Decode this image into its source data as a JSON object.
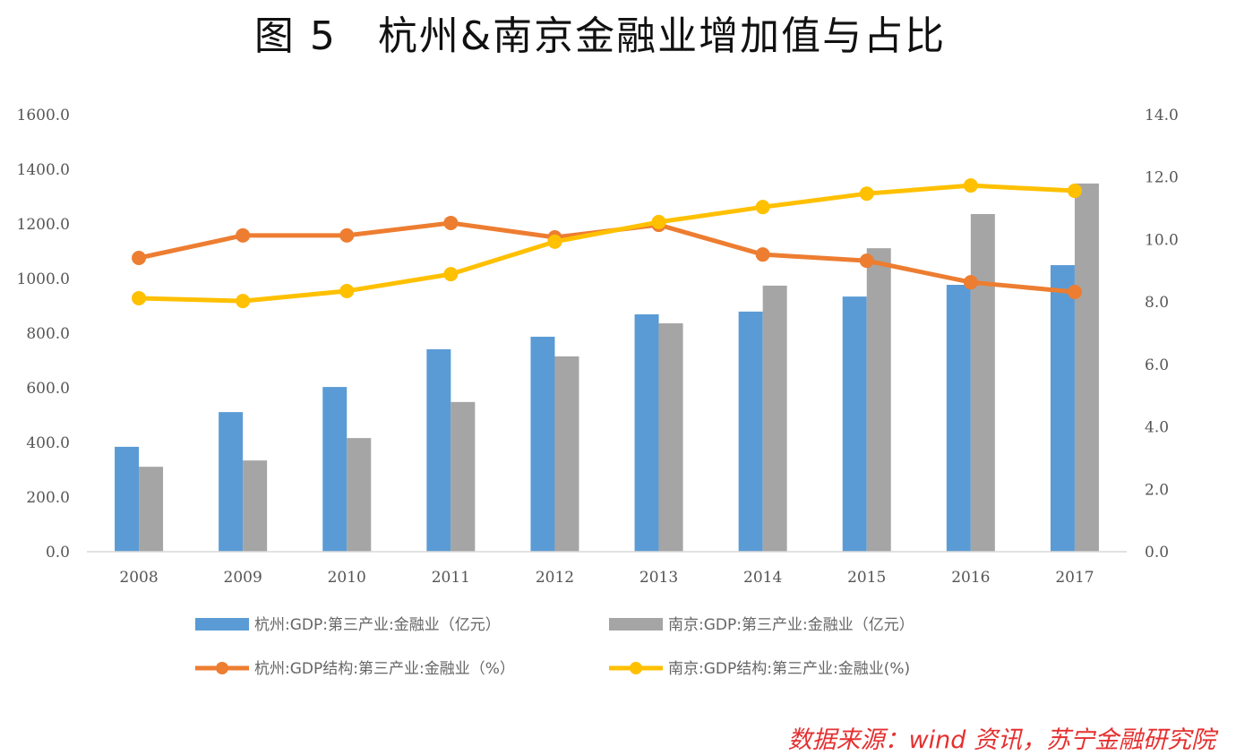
{
  "title": "图 5　杭州&南京金融业增加值与占比",
  "source": "数据来源：wind 资讯，苏宁金融研究院",
  "chart_data": {
    "type": "bar+line",
    "title": "图 5　杭州&南京金融业增加值与占比",
    "categories": [
      "2008",
      "2009",
      "2010",
      "2011",
      "2012",
      "2013",
      "2014",
      "2015",
      "2016",
      "2017"
    ],
    "y_left": {
      "range": [
        0,
        1600
      ],
      "ticks": [
        "0.0",
        "200.0",
        "400.0",
        "600.0",
        "800.0",
        "1000.0",
        "1200.0",
        "1400.0",
        "1600.0"
      ]
    },
    "y_right": {
      "range": [
        0,
        14
      ],
      "ticks": [
        "0.0",
        "2.0",
        "4.0",
        "6.0",
        "8.0",
        "10.0",
        "12.0",
        "14.0"
      ]
    },
    "grid": false,
    "legend_position": "bottom",
    "series": [
      {
        "name": "杭州:GDP:第三产业:金融业（亿元）",
        "type": "bar",
        "axis": "left",
        "color": "#5b9bd5",
        "values": [
          384,
          511,
          603,
          741,
          787,
          869,
          879,
          934,
          977,
          1049
        ]
      },
      {
        "name": "南京:GDP:第三产业:金融业（亿元）",
        "type": "bar",
        "axis": "left",
        "color": "#a5a5a5",
        "values": [
          311,
          334,
          416,
          548,
          715,
          836,
          974,
          1111,
          1236,
          1348
        ]
      },
      {
        "name": "杭州:GDP结构:第三产业:金融业（%）",
        "type": "line",
        "axis": "right",
        "color": "#ed7d31",
        "values": [
          9.41,
          10.13,
          10.13,
          10.53,
          10.07,
          10.47,
          9.52,
          9.32,
          8.63,
          8.32
        ]
      },
      {
        "name": "南京:GDP结构:第三产业:金融业(%)",
        "type": "line",
        "axis": "right",
        "color": "#ffc000",
        "values": [
          8.12,
          8.03,
          8.35,
          8.89,
          9.93,
          10.56,
          11.04,
          11.47,
          11.73,
          11.56
        ]
      }
    ]
  }
}
